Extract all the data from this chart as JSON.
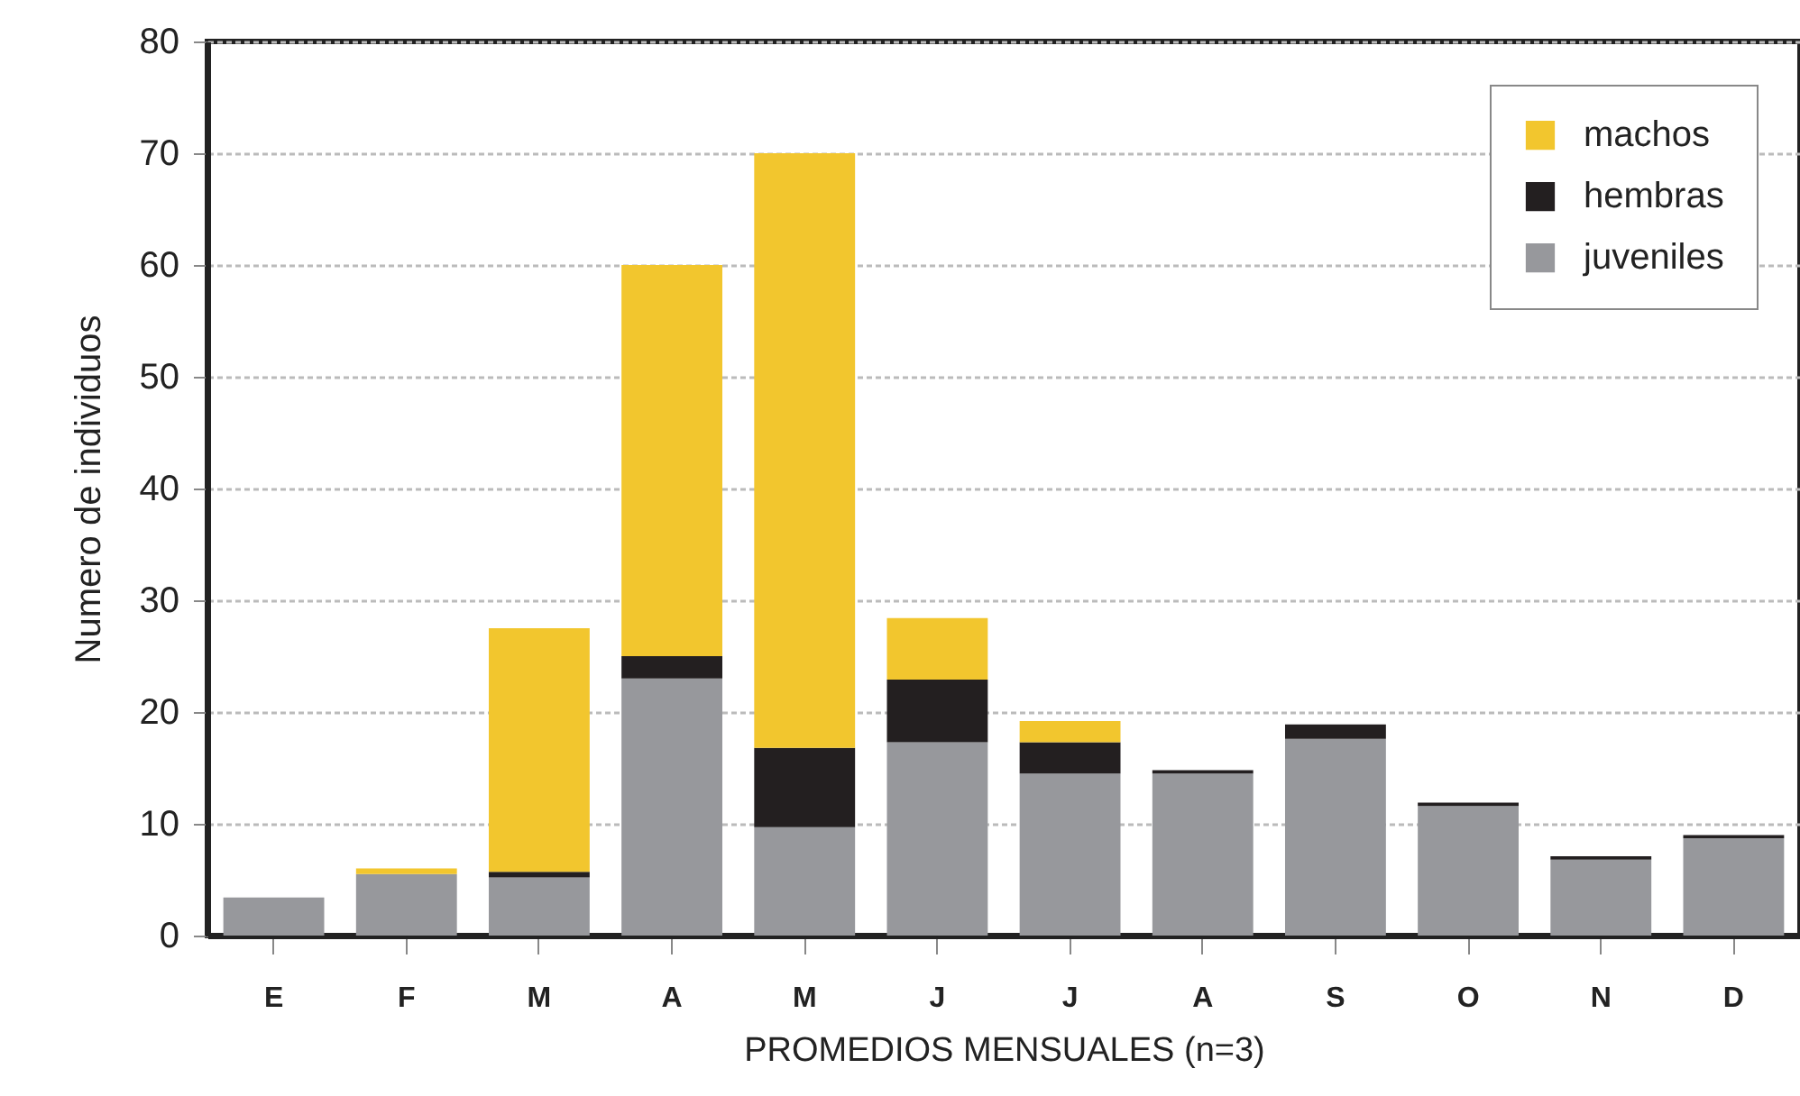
{
  "chart_data": {
    "type": "bar",
    "stacked": true,
    "xlabel": "PROMEDIOS MENSUALES (n=3)",
    "ylabel": "Numero de individuos",
    "categories": [
      "E",
      "F",
      "M",
      "A",
      "M",
      "J",
      "J",
      "A",
      "S",
      "O",
      "N",
      "D"
    ],
    "series": [
      {
        "name": "juveniles",
        "color": "#97989c",
        "values": [
          3.4,
          5.5,
          5.2,
          23,
          9.7,
          17.3,
          14.5,
          14.5,
          17.6,
          11.6,
          6.8,
          8.7
        ]
      },
      {
        "name": "hembras",
        "color": "#231f20",
        "values": [
          0,
          0,
          0.5,
          2,
          7.1,
          5.6,
          2.8,
          0.3,
          1.3,
          0.3,
          0.3,
          0.3
        ]
      },
      {
        "name": "machos",
        "color": "#f2c62e",
        "values": [
          0,
          0.5,
          21.8,
          35,
          53.2,
          5.5,
          1.9,
          0,
          0,
          0,
          0,
          0
        ]
      }
    ],
    "ylim": [
      0,
      80
    ],
    "yticks": [
      0,
      10,
      20,
      30,
      40,
      50,
      60,
      70,
      80
    ],
    "grid": "y",
    "legend": "top right"
  }
}
